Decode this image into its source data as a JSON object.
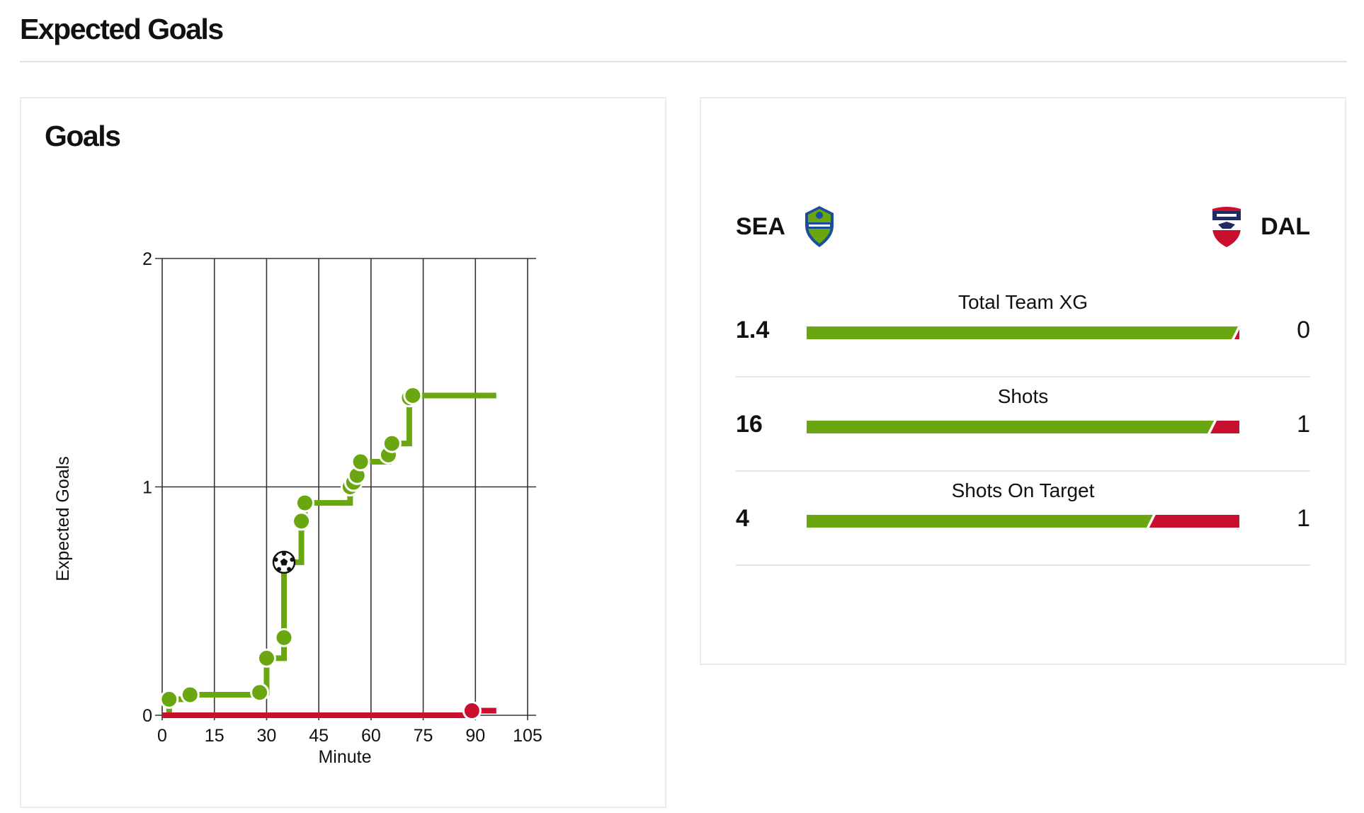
{
  "page": {
    "title": "Expected Goals"
  },
  "chart_data": {
    "type": "line",
    "title": "Goals",
    "xlabel": "Minute",
    "ylabel": "Expected Goals",
    "xlim": [
      0,
      105
    ],
    "ylim": [
      0,
      2
    ],
    "xticks": [
      "0",
      "15",
      "30",
      "45",
      "60",
      "75",
      "90",
      "105"
    ],
    "yticks": [
      "0",
      "1",
      "2"
    ],
    "grid": true,
    "series": [
      {
        "name": "SEA",
        "color": "#6aa60f",
        "style": "step",
        "end_minute": 96,
        "shots": [
          {
            "minute": 2,
            "xg": 0.07
          },
          {
            "minute": 8,
            "xg": 0.09
          },
          {
            "minute": 28,
            "xg": 0.1
          },
          {
            "minute": 30,
            "xg": 0.25
          },
          {
            "minute": 35,
            "xg": 0.34
          },
          {
            "minute": 35,
            "xg": 0.67,
            "goal": true
          },
          {
            "minute": 40,
            "xg": 0.85
          },
          {
            "minute": 41,
            "xg": 0.93
          },
          {
            "minute": 54,
            "xg": 1.0
          },
          {
            "minute": 55,
            "xg": 1.02
          },
          {
            "minute": 56,
            "xg": 1.05
          },
          {
            "minute": 57,
            "xg": 1.11
          },
          {
            "minute": 65,
            "xg": 1.14
          },
          {
            "minute": 66,
            "xg": 1.19
          },
          {
            "minute": 71,
            "xg": 1.39
          },
          {
            "minute": 72,
            "xg": 1.4
          }
        ]
      },
      {
        "name": "DAL",
        "color": "#c8102e",
        "style": "step",
        "end_minute": 96,
        "shots": [
          {
            "minute": 89,
            "xg": 0.02
          }
        ]
      }
    ]
  },
  "teams": {
    "home": {
      "code": "SEA",
      "color": "#6aa60f",
      "logo": "sounders-crest-icon"
    },
    "away": {
      "code": "DAL",
      "color": "#c8102e",
      "logo": "fc-dallas-crest-icon"
    }
  },
  "stats": [
    {
      "label": "Total Team XG",
      "home": "1.4",
      "away": "0",
      "home_value": 1.4,
      "away_value": 0.0
    },
    {
      "label": "Shots",
      "home": "16",
      "away": "1",
      "home_value": 16,
      "away_value": 1
    },
    {
      "label": "Shots On Target",
      "home": "4",
      "away": "1",
      "home_value": 4,
      "away_value": 1
    }
  ]
}
